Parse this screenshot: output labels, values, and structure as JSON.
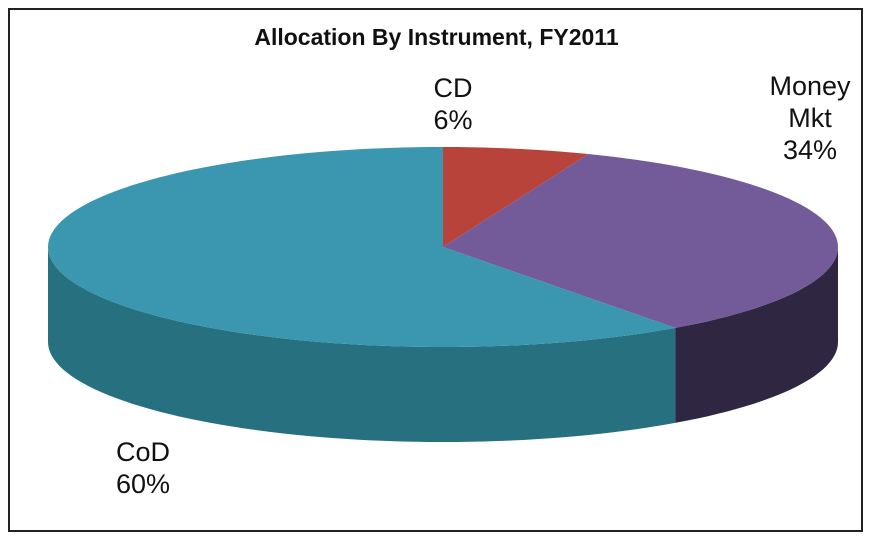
{
  "chart_data": {
    "type": "pie",
    "title": "Allocation By Instrument, FY2011",
    "categories": [
      "CD",
      "Money Mkt",
      "CoD"
    ],
    "values": [
      6,
      34,
      60
    ],
    "value_labels": [
      "6%",
      "34%",
      "60%"
    ],
    "colors": [
      "#b8433a",
      "#735a98",
      "#3a97af"
    ],
    "side_colors": [
      "#7a2a24",
      "#2f2642",
      "#26707f"
    ]
  }
}
